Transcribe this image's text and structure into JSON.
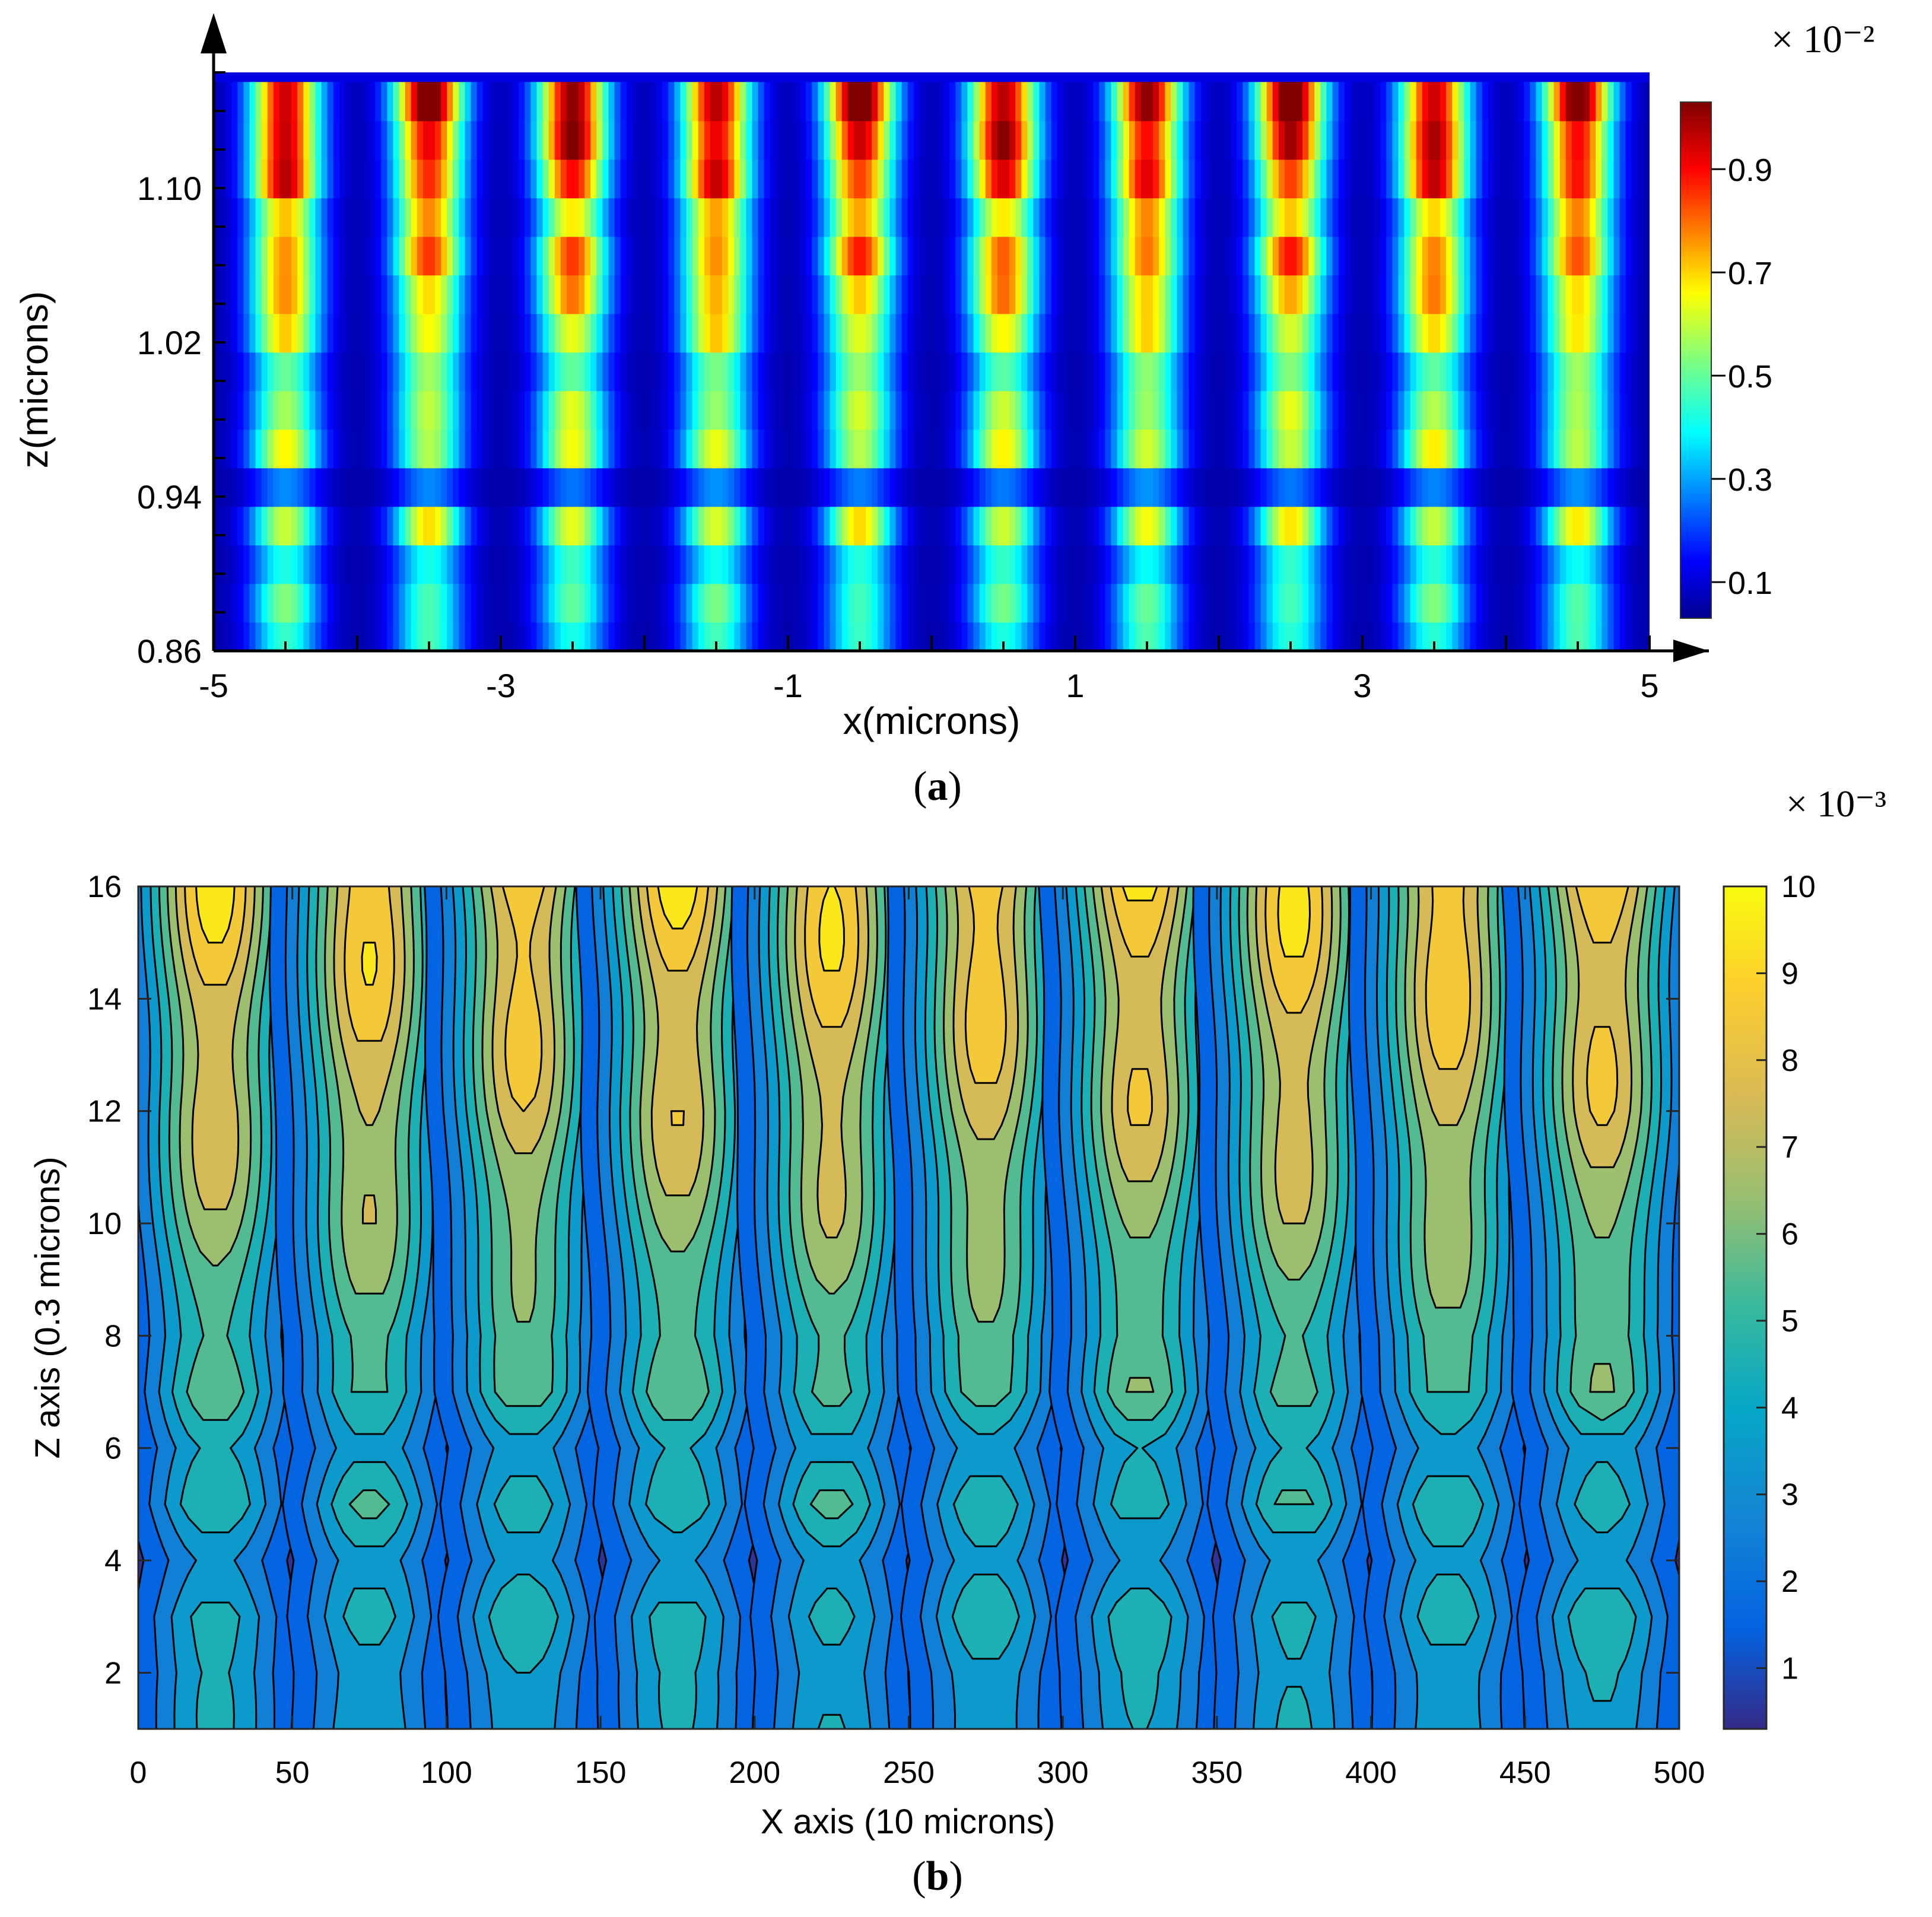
{
  "chart_data": [
    {
      "panel": "(a)",
      "panel_letter": "a",
      "type": "heatmap",
      "colormap": "jet",
      "xlabel": "x(microns)",
      "ylabel": "z(microns)",
      "xlim": [
        -5,
        5
      ],
      "ylim": [
        0.86,
        1.16
      ],
      "xticks": [
        "-5",
        "-3",
        "-1",
        "1",
        "3",
        "5"
      ],
      "yticks": [
        "0.86",
        "0.94",
        "1.02",
        "1.10"
      ],
      "colorbar": {
        "multiplier": "× 10⁻²",
        "ticks": [
          "0.1",
          "0.3",
          "0.5",
          "0.7",
          "0.9"
        ],
        "range": [
          0.03,
          1.03
        ]
      },
      "stripe_centers_x": [
        -4.5,
        -3.5,
        -2.5,
        -1.5,
        -0.5,
        0.5,
        1.5,
        2.5,
        3.5,
        4.5
      ],
      "z_rows": [
        0.865,
        0.885,
        0.905,
        0.925,
        0.945,
        0.965,
        0.985,
        1.005,
        1.025,
        1.045,
        1.065,
        1.085,
        1.105,
        1.125,
        1.145
      ],
      "stripe_peak_values": [
        0.4,
        0.45,
        0.38,
        0.6,
        0.22,
        0.58,
        0.55,
        0.48,
        0.62,
        0.7,
        0.78,
        0.68,
        0.86,
        0.92,
        0.98
      ]
    },
    {
      "panel": "(b)",
      "panel_letter": "b",
      "type": "contour",
      "colormap": "parula",
      "xlabel": "X axis (10 microns)",
      "ylabel": "Z axis (0.3 microns)",
      "xlim": [
        0,
        500
      ],
      "ylim": [
        1,
        16
      ],
      "xticks": [
        "0",
        "50",
        "100",
        "150",
        "200",
        "250",
        "300",
        "350",
        "400",
        "450",
        "500"
      ],
      "yticks": [
        "2",
        "4",
        "6",
        "8",
        "10",
        "12",
        "14",
        "16"
      ],
      "colorbar": {
        "multiplier": "× 10⁻³",
        "ticks": [
          "1",
          "2",
          "3",
          "4",
          "5",
          "6",
          "7",
          "8",
          "9",
          "10"
        ],
        "range": [
          0.3,
          10
        ]
      },
      "stripe_centers_x": [
        25,
        75,
        125,
        175,
        225,
        275,
        325,
        375,
        425,
        475
      ],
      "stripe_peak_values_by_z": [
        {
          "z": 2,
          "value": 4.5
        },
        {
          "z": 3,
          "value": 5.3
        },
        {
          "z": 4,
          "value": 4.0
        },
        {
          "z": 5,
          "value": 5.6
        },
        {
          "z": 6,
          "value": 4.4
        },
        {
          "z": 7,
          "value": 6.3
        },
        {
          "z": 8,
          "value": 6.0
        },
        {
          "z": 10,
          "value": 7.2
        },
        {
          "z": 12,
          "value": 8.2
        },
        {
          "z": 14,
          "value": 8.8
        },
        {
          "z": 16,
          "value": 9.6
        }
      ]
    }
  ]
}
